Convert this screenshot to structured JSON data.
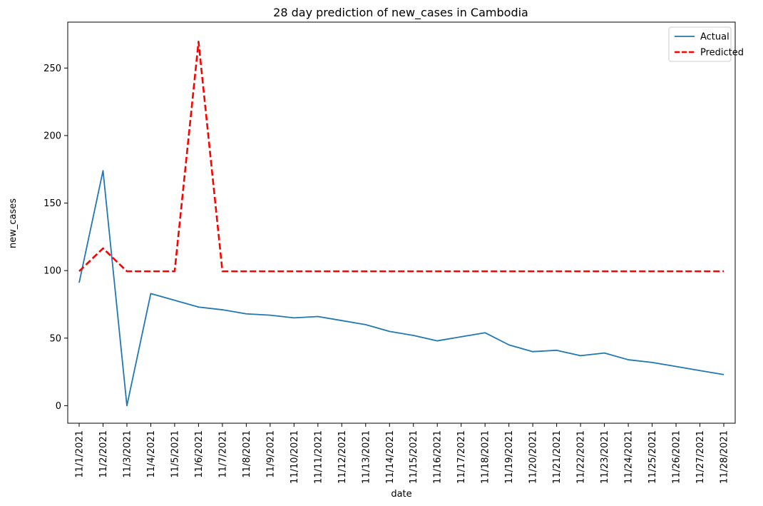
{
  "chart_data": {
    "type": "line",
    "title": "28 day prediction of new_cases in Cambodia",
    "xlabel": "date",
    "ylabel": "new_cases",
    "ylim": [
      -13,
      284
    ],
    "y_ticks": [
      0,
      50,
      100,
      150,
      200,
      250
    ],
    "grid": false,
    "legend_position": "top-right",
    "x": [
      "11/1/2021",
      "11/2/2021",
      "11/3/2021",
      "11/4/2021",
      "11/5/2021",
      "11/6/2021",
      "11/7/2021",
      "11/8/2021",
      "11/9/2021",
      "11/10/2021",
      "11/11/2021",
      "11/12/2021",
      "11/13/2021",
      "11/14/2021",
      "11/15/2021",
      "11/16/2021",
      "11/17/2021",
      "11/18/2021",
      "11/19/2021",
      "11/20/2021",
      "11/21/2021",
      "11/22/2021",
      "11/23/2021",
      "11/24/2021",
      "11/25/2021",
      "11/26/2021",
      "11/27/2021",
      "11/28/2021"
    ],
    "series": [
      {
        "name": "Actual",
        "color": "#1f77b4",
        "style": "solid",
        "values": [
          91,
          174,
          0,
          83,
          78,
          73,
          71,
          68,
          67,
          65,
          66,
          63,
          60,
          55,
          52,
          48,
          51,
          54,
          45,
          40,
          41,
          37,
          39,
          34,
          32,
          29,
          26,
          23
        ]
      },
      {
        "name": "Predicted",
        "color": "#ff0000",
        "style": "dashed",
        "values": [
          99.5,
          116.5,
          99.5,
          99.5,
          99.5,
          269.5,
          99.5,
          99.5,
          99.5,
          99.5,
          99.5,
          99.5,
          99.5,
          99.5,
          99.5,
          99.5,
          99.5,
          99.5,
          99.5,
          99.5,
          99.5,
          99.5,
          99.5,
          99.5,
          99.5,
          99.5,
          99.5,
          99.5
        ]
      }
    ]
  }
}
